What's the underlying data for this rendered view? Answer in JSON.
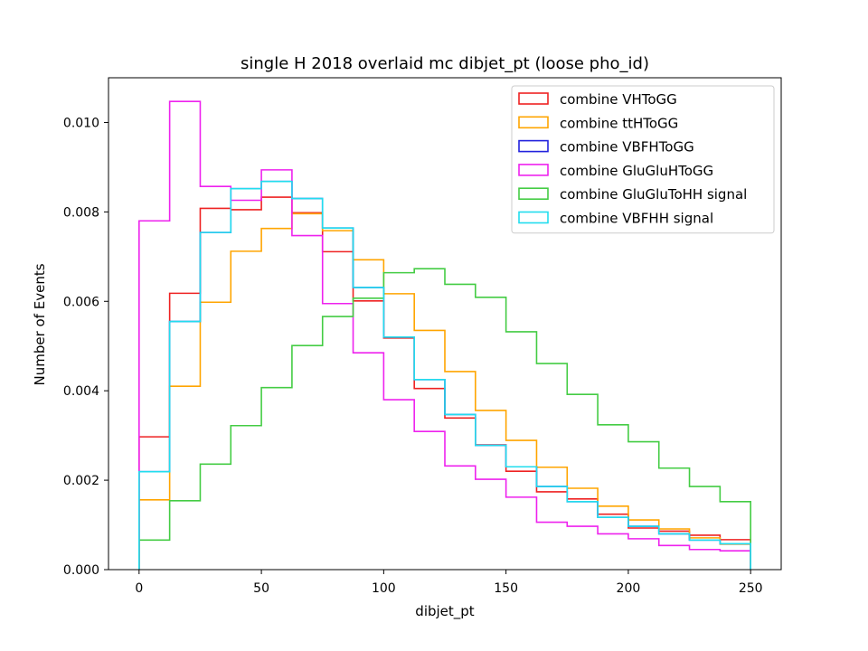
{
  "chart_data": {
    "type": "step-histogram",
    "title": "single H 2018 overlaid mc dibjet_pt (loose pho_id)",
    "xlabel": "dibjet_pt",
    "ylabel": "Number of Events",
    "xlim": [
      -12.5,
      262.5
    ],
    "ylim": [
      0,
      0.011
    ],
    "xticks": [
      0,
      50,
      100,
      150,
      200,
      250
    ],
    "xtick_labels": [
      "0",
      "50",
      "100",
      "150",
      "200",
      "250"
    ],
    "yticks": [
      0,
      0.002,
      0.004,
      0.006,
      0.008,
      0.01
    ],
    "ytick_labels": [
      "0.000",
      "0.002",
      "0.004",
      "0.006",
      "0.008",
      "0.010"
    ],
    "bin_edges": [
      0,
      12.5,
      25,
      37.5,
      50,
      62.5,
      75,
      87.5,
      100,
      112.5,
      125,
      137.5,
      150,
      162.5,
      175,
      187.5,
      200,
      212.5,
      225,
      237.5,
      250
    ],
    "legend_position": "top-right",
    "series": [
      {
        "name": "combine VHToGG",
        "color": "#ee2222",
        "values": [
          0.00297,
          0.00618,
          0.00808,
          0.00805,
          0.00833,
          0.00798,
          0.00711,
          0.00601,
          0.00518,
          0.00405,
          0.00339,
          0.00279,
          0.0022,
          0.00174,
          0.00158,
          0.00124,
          0.00093,
          0.00086,
          0.00077,
          0.00067
        ]
      },
      {
        "name": "combine ttHToGG",
        "color": "#ffa500",
        "values": [
          0.00156,
          0.0041,
          0.00598,
          0.00712,
          0.00763,
          0.00796,
          0.00758,
          0.00693,
          0.00617,
          0.00535,
          0.00443,
          0.00356,
          0.00289,
          0.00229,
          0.00182,
          0.00142,
          0.00111,
          0.00091,
          0.00071,
          0.00057
        ]
      },
      {
        "name": "combine VBFHToGG",
        "color": "#2222dd",
        "values": [
          0.00219,
          0.00555,
          0.00754,
          0.00852,
          0.00868,
          0.0083,
          0.00764,
          0.00631,
          0.0052,
          0.00425,
          0.00347,
          0.00278,
          0.0023,
          0.00186,
          0.00152,
          0.00117,
          0.00097,
          0.0008,
          0.00066,
          0.00058
        ]
      },
      {
        "name": "combine GluGluHToGG",
        "color": "#ee22ee",
        "values": [
          0.0078,
          0.01047,
          0.00857,
          0.00826,
          0.00894,
          0.00747,
          0.00595,
          0.00485,
          0.0038,
          0.00309,
          0.00232,
          0.00202,
          0.00162,
          0.00106,
          0.00097,
          0.0008,
          0.00069,
          0.00054,
          0.00045,
          0.00042
        ]
      },
      {
        "name": "combine GluGluToHH signal",
        "color": "#44cc44",
        "values": [
          0.00066,
          0.00154,
          0.00236,
          0.00322,
          0.00407,
          0.00501,
          0.00566,
          0.00607,
          0.00664,
          0.00673,
          0.00638,
          0.00609,
          0.00532,
          0.00461,
          0.00392,
          0.00324,
          0.00286,
          0.00227,
          0.00186,
          0.00152
        ]
      },
      {
        "name": "combine VBFHH signal",
        "color": "#22ddee",
        "values": [
          0.00219,
          0.00555,
          0.00754,
          0.00852,
          0.00868,
          0.0083,
          0.00764,
          0.00631,
          0.0052,
          0.00425,
          0.00347,
          0.00278,
          0.0023,
          0.00186,
          0.00152,
          0.00117,
          0.00097,
          0.0008,
          0.00066,
          0.00058
        ]
      }
    ]
  }
}
